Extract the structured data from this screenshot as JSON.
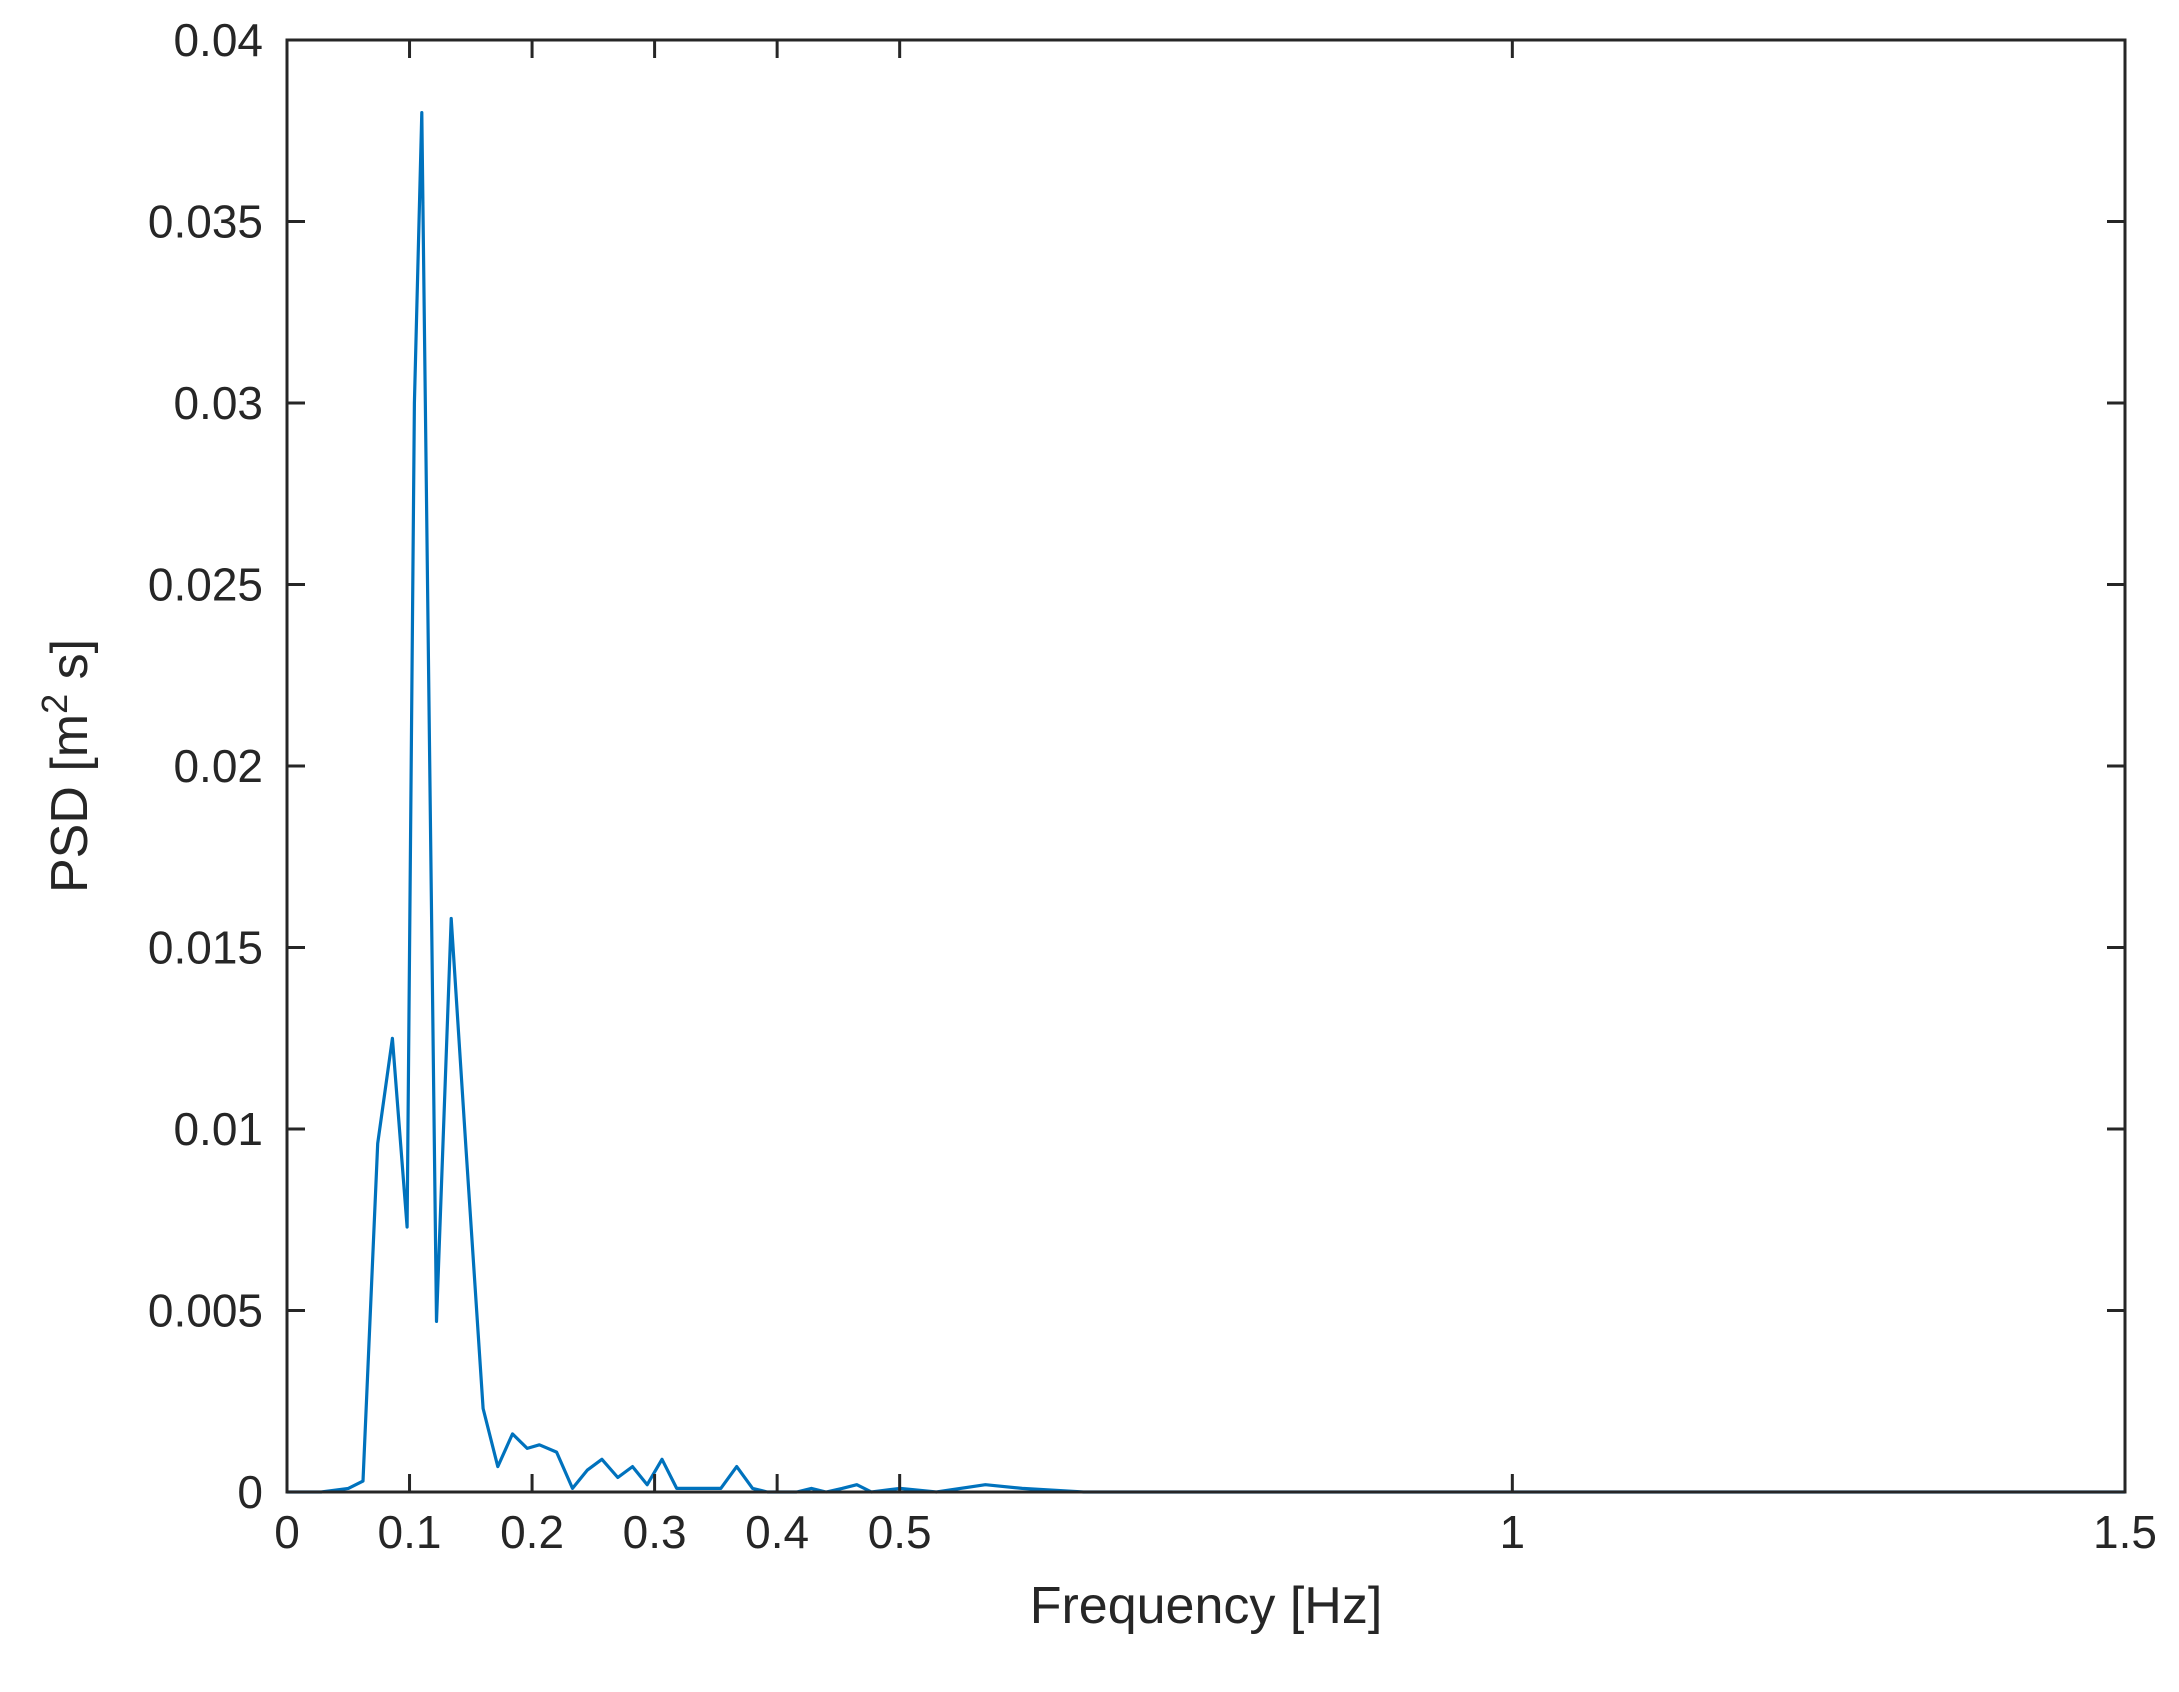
{
  "chart_data": {
    "type": "line",
    "title": "",
    "xlabel": "Frequency [Hz]",
    "ylabel": {
      "main": "PSD [m",
      "superscript": "2",
      "suffix": " s]"
    },
    "xlim": [
      0,
      1.5
    ],
    "ylim": [
      0,
      0.04
    ],
    "xticks": [
      {
        "value": 0,
        "label": "0"
      },
      {
        "value": 0.1,
        "label": "0.1"
      },
      {
        "value": 0.2,
        "label": "0.2"
      },
      {
        "value": 0.3,
        "label": "0.3"
      },
      {
        "value": 0.4,
        "label": "0.4"
      },
      {
        "value": 0.5,
        "label": "0.5"
      },
      {
        "value": 1,
        "label": "1"
      },
      {
        "value": 1.5,
        "label": "1.5"
      }
    ],
    "yticks": [
      {
        "value": 0,
        "label": "0"
      },
      {
        "value": 0.005,
        "label": "0.005"
      },
      {
        "value": 0.01,
        "label": "0.01"
      },
      {
        "value": 0.015,
        "label": "0.015"
      },
      {
        "value": 0.02,
        "label": "0.02"
      },
      {
        "value": 0.025,
        "label": "0.025"
      },
      {
        "value": 0.03,
        "label": "0.03"
      },
      {
        "value": 0.035,
        "label": "0.035"
      },
      {
        "value": 0.04,
        "label": "0.04"
      }
    ],
    "grid": false,
    "series": [
      {
        "color": "#0072BD",
        "x": [
          0,
          0.028,
          0.05,
          0.062,
          0.074,
          0.086,
          0.098,
          0.104,
          0.11,
          0.122,
          0.134,
          0.146,
          0.16,
          0.172,
          0.184,
          0.196,
          0.206,
          0.22,
          0.233,
          0.245,
          0.257,
          0.27,
          0.282,
          0.294,
          0.306,
          0.318,
          0.33,
          0.342,
          0.354,
          0.367,
          0.38,
          0.392,
          0.404,
          0.416,
          0.428,
          0.44,
          0.453,
          0.465,
          0.477,
          0.5,
          0.53,
          0.57,
          0.6,
          0.65,
          0.7,
          0.8,
          1.0,
          1.2,
          1.5
        ],
        "y": [
          0,
          0,
          0.0001,
          0.0003,
          0.0096,
          0.0125,
          0.0073,
          0.03,
          0.038,
          0.0047,
          0.0158,
          0.0095,
          0.0023,
          0.0007,
          0.0016,
          0.0012,
          0.0013,
          0.0011,
          0.0001,
          0.0006,
          0.0009,
          0.0004,
          0.0007,
          0.0002,
          0.0009,
          0.0001,
          0.0001,
          0.0001,
          0.0001,
          0.0007,
          0.0001,
          0,
          0,
          0,
          0.0001,
          0,
          0.0001,
          0.0002,
          0,
          0.0001,
          0,
          0.0002,
          0.0001,
          0,
          0,
          0,
          0,
          0,
          0
        ]
      }
    ]
  }
}
